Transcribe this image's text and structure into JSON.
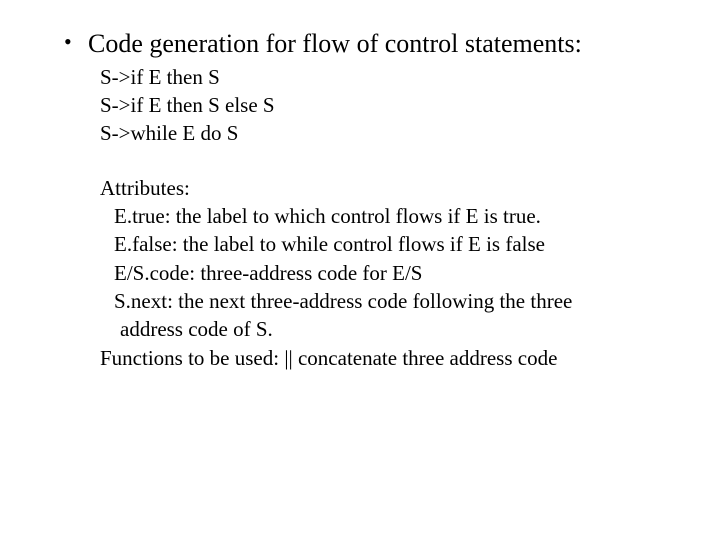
{
  "bullet": {
    "dot": "•",
    "text": "Code generation for flow of control statements:"
  },
  "grammar": {
    "l1": "S->if E then S",
    "l2": "S->if E then S else S",
    "l3": "S->while E do S"
  },
  "attributes": {
    "heading": "Attributes:",
    "etrue": "E.true: the label to which control flows if E is true.",
    "efalse": "E.false: the label to while control flows if E is false",
    "code": "E/S.code:  three-address code for E/S",
    "snext1": "S.next: the next three-address code following the three",
    "snext2": "address code of S."
  },
  "functions": {
    "line": "Functions to be used: || concatenate three address code"
  }
}
